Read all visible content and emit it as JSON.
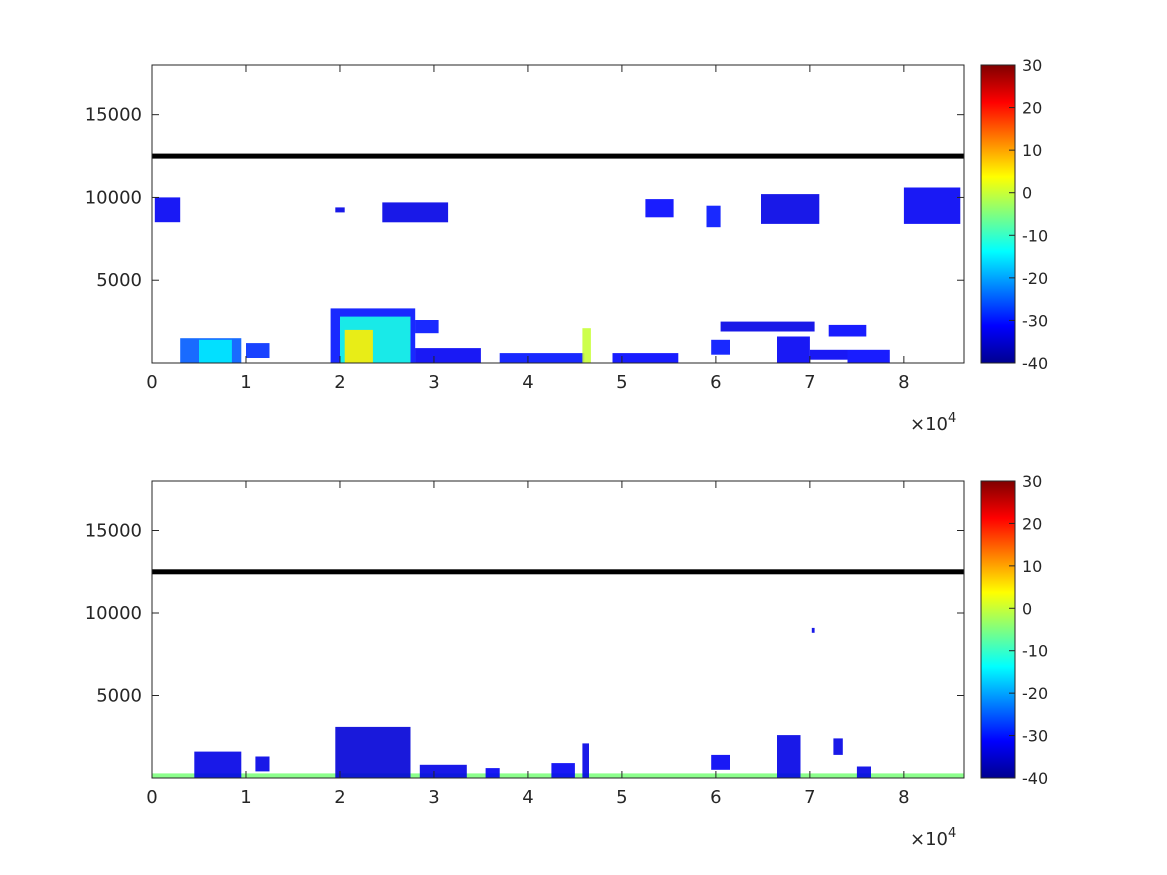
{
  "chart_data": [
    {
      "type": "heatmap",
      "title": "",
      "xlabel": "",
      "ylabel": "",
      "xlim": [
        0,
        86400
      ],
      "ylim": [
        0,
        18000
      ],
      "x_ticks": [
        0,
        10000,
        20000,
        30000,
        40000,
        50000,
        60000,
        70000,
        80000
      ],
      "x_tick_labels": [
        "0",
        "1",
        "2",
        "3",
        "4",
        "5",
        "6",
        "7",
        "8"
      ],
      "x_exponent": {
        "base": "×10",
        "power": "4"
      },
      "y_ticks": [
        5000,
        10000,
        15000
      ],
      "y_tick_labels": [
        "5000",
        "10000",
        "15000"
      ],
      "colorbar": {
        "colormap": "jet",
        "clim": [
          -40,
          30
        ],
        "ticks": [
          30,
          20,
          10,
          0,
          -10,
          -20,
          -30,
          -40
        ],
        "tick_labels": [
          "30",
          "20",
          "10",
          "0",
          "-10",
          "-20",
          "-30",
          "-40"
        ]
      },
      "reference_line": {
        "y": 12500,
        "color": "#000000"
      },
      "grid": false,
      "patches": [
        {
          "x": [
            300,
            3000
          ],
          "y": [
            8500,
            10000
          ],
          "v": -32
        },
        {
          "x": [
            19500,
            20500
          ],
          "y": [
            9100,
            9400
          ],
          "v": -33
        },
        {
          "x": [
            24500,
            31500
          ],
          "y": [
            8500,
            9700
          ],
          "v": -33
        },
        {
          "x": [
            52500,
            55500
          ],
          "y": [
            8800,
            9900
          ],
          "v": -31
        },
        {
          "x": [
            59000,
            60500
          ],
          "y": [
            8200,
            9500
          ],
          "v": -30
        },
        {
          "x": [
            64800,
            71000
          ],
          "y": [
            8400,
            10200
          ],
          "v": -33
        },
        {
          "x": [
            80000,
            86000
          ],
          "y": [
            8400,
            10600
          ],
          "v": -32
        },
        {
          "x": [
            3000,
            9500
          ],
          "y": [
            0,
            1500
          ],
          "v": -25
        },
        {
          "x": [
            5000,
            8500
          ],
          "y": [
            0,
            1400
          ],
          "v": -15
        },
        {
          "x": [
            10000,
            12500
          ],
          "y": [
            300,
            1200
          ],
          "v": -28
        },
        {
          "x": [
            19000,
            28000
          ],
          "y": [
            0,
            3300
          ],
          "v": -30
        },
        {
          "x": [
            20000,
            27500
          ],
          "y": [
            0,
            2800
          ],
          "v": -12
        },
        {
          "x": [
            20500,
            23500
          ],
          "y": [
            0,
            2000
          ],
          "v": 5
        },
        {
          "x": [
            28000,
            30500
          ],
          "y": [
            1800,
            2600
          ],
          "v": -30
        },
        {
          "x": [
            28000,
            35000
          ],
          "y": [
            0,
            900
          ],
          "v": -32
        },
        {
          "x": [
            37000,
            46000
          ],
          "y": [
            0,
            600
          ],
          "v": -30
        },
        {
          "x": [
            45800,
            46700
          ],
          "y": [
            0,
            2100
          ],
          "v": 0
        },
        {
          "x": [
            49000,
            56000
          ],
          "y": [
            0,
            600
          ],
          "v": -31
        },
        {
          "x": [
            59500,
            61500
          ],
          "y": [
            500,
            1400
          ],
          "v": -30
        },
        {
          "x": [
            60500,
            70500
          ],
          "y": [
            1900,
            2500
          ],
          "v": -33
        },
        {
          "x": [
            66500,
            70000
          ],
          "y": [
            0,
            1600
          ],
          "v": -32
        },
        {
          "x": [
            70000,
            74000
          ],
          "y": [
            200,
            800
          ],
          "v": -32
        },
        {
          "x": [
            72000,
            76000
          ],
          "y": [
            1600,
            2300
          ],
          "v": -31
        },
        {
          "x": [
            74000,
            78500
          ],
          "y": [
            0,
            800
          ],
          "v": -31
        }
      ]
    },
    {
      "type": "heatmap",
      "title": "",
      "xlabel": "",
      "ylabel": "",
      "xlim": [
        0,
        86400
      ],
      "ylim": [
        0,
        18000
      ],
      "x_ticks": [
        0,
        10000,
        20000,
        30000,
        40000,
        50000,
        60000,
        70000,
        80000
      ],
      "x_tick_labels": [
        "0",
        "1",
        "2",
        "3",
        "4",
        "5",
        "6",
        "7",
        "8"
      ],
      "x_exponent": {
        "base": "×10",
        "power": "4"
      },
      "y_ticks": [
        5000,
        10000,
        15000
      ],
      "y_tick_labels": [
        "5000",
        "10000",
        "15000"
      ],
      "colorbar": {
        "colormap": "jet",
        "clim": [
          -40,
          30
        ],
        "ticks": [
          30,
          20,
          10,
          0,
          -10,
          -20,
          -30,
          -40
        ],
        "tick_labels": [
          "30",
          "20",
          "10",
          "0",
          "-10",
          "-20",
          "-30",
          "-40"
        ]
      },
      "reference_line": {
        "y": 12500,
        "color": "#000000"
      },
      "grid": false,
      "patches": [
        {
          "x": [
            0,
            86400
          ],
          "y": [
            0,
            280
          ],
          "v": -5
        },
        {
          "x": [
            4500,
            9500
          ],
          "y": [
            0,
            1600
          ],
          "v": -33
        },
        {
          "x": [
            11000,
            12500
          ],
          "y": [
            400,
            1300
          ],
          "v": -33
        },
        {
          "x": [
            19500,
            27500
          ],
          "y": [
            0,
            3100
          ],
          "v": -34
        },
        {
          "x": [
            28500,
            33500
          ],
          "y": [
            0,
            800
          ],
          "v": -33
        },
        {
          "x": [
            35500,
            37000
          ],
          "y": [
            0,
            600
          ],
          "v": -32
        },
        {
          "x": [
            42500,
            45000
          ],
          "y": [
            0,
            900
          ],
          "v": -32
        },
        {
          "x": [
            45800,
            46500
          ],
          "y": [
            0,
            2100
          ],
          "v": -33
        },
        {
          "x": [
            59500,
            61500
          ],
          "y": [
            500,
            1400
          ],
          "v": -32
        },
        {
          "x": [
            66500,
            69000
          ],
          "y": [
            0,
            2600
          ],
          "v": -33
        },
        {
          "x": [
            72500,
            73500
          ],
          "y": [
            1400,
            2400
          ],
          "v": -33
        },
        {
          "x": [
            75000,
            76500
          ],
          "y": [
            0,
            700
          ],
          "v": -33
        },
        {
          "x": [
            70200,
            70500
          ],
          "y": [
            8800,
            9100
          ],
          "v": -33
        }
      ]
    }
  ]
}
